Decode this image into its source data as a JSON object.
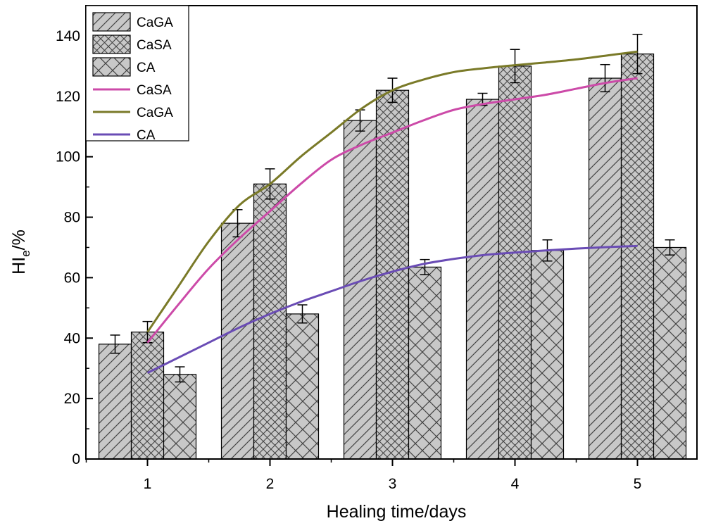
{
  "chart_data": {
    "type": "bar",
    "title": "",
    "xlabel": "Healing time/days",
    "ylabel_main": "HI",
    "ylabel_sub": "e",
    "ylabel_suffix": "/%",
    "categories": [
      "1",
      "2",
      "3",
      "4",
      "5"
    ],
    "ylim": [
      0,
      150
    ],
    "yticks": [
      0,
      20,
      40,
      60,
      80,
      100,
      120,
      140
    ],
    "grid": false,
    "legend_position": "top-left",
    "series": [
      {
        "name": "CaGA",
        "kind": "bar",
        "pattern": "diagonal",
        "values": [
          38,
          78,
          112,
          119,
          126
        ],
        "errors": [
          3,
          4.5,
          3.5,
          2,
          4.5
        ]
      },
      {
        "name": "CaSA",
        "kind": "bar",
        "pattern": "crosshatch-fine",
        "values": [
          42,
          91,
          122,
          130,
          134
        ],
        "errors": [
          3.5,
          5,
          4,
          5.5,
          6.5
        ]
      },
      {
        "name": "CA",
        "kind": "bar",
        "pattern": "crosshatch-coarse",
        "values": [
          28,
          48,
          63.5,
          69,
          70
        ],
        "errors": [
          2.5,
          3,
          2.5,
          3.5,
          2.5
        ]
      }
    ],
    "fit_lines": [
      {
        "name": "CaSA",
        "color": "#cc4aa8",
        "x": [
          1,
          1.25,
          1.5,
          1.75,
          2,
          2.25,
          2.5,
          2.75,
          3,
          3.25,
          3.5,
          3.75,
          4,
          4.25,
          4.5,
          4.75,
          5
        ],
        "y": [
          38.5,
          51,
          63,
          73,
          82,
          91,
          99,
          104,
          108,
          112,
          115.5,
          117.5,
          119,
          120.5,
          122.5,
          124.5,
          126
        ]
      },
      {
        "name": "CaGA",
        "color": "#7a7a28",
        "x": [
          1,
          1.25,
          1.5,
          1.75,
          2,
          2.25,
          2.5,
          2.75,
          3,
          3.25,
          3.5,
          3.75,
          4,
          4.25,
          4.5,
          4.75,
          5
        ],
        "y": [
          42,
          57,
          72,
          84,
          91,
          100,
          108,
          116,
          122,
          125.5,
          128,
          129.3,
          130.3,
          131.2,
          132.2,
          133.5,
          134.8
        ]
      },
      {
        "name": "CA",
        "color": "#6a4cb5",
        "x": [
          1,
          1.25,
          1.5,
          1.75,
          2,
          2.25,
          2.5,
          2.75,
          3,
          3.25,
          3.5,
          3.75,
          4,
          4.25,
          4.5,
          4.75,
          5
        ],
        "y": [
          28.5,
          33.5,
          38.5,
          43.5,
          48,
          52,
          55.5,
          59,
          62,
          64.5,
          66.2,
          67.5,
          68.3,
          69,
          69.6,
          70.1,
          70.5
        ]
      }
    ],
    "legend": [
      {
        "label": "CaGA",
        "type": "bar",
        "pattern": "diagonal"
      },
      {
        "label": "CaSA",
        "type": "bar",
        "pattern": "crosshatch-fine"
      },
      {
        "label": "CA",
        "type": "bar",
        "pattern": "crosshatch-coarse"
      },
      {
        "label": "CaSA",
        "type": "line",
        "color": "#cc4aa8"
      },
      {
        "label": "CaGA",
        "type": "line",
        "color": "#7a7a28"
      },
      {
        "label": "CA",
        "type": "line",
        "color": "#6a4cb5"
      }
    ]
  }
}
